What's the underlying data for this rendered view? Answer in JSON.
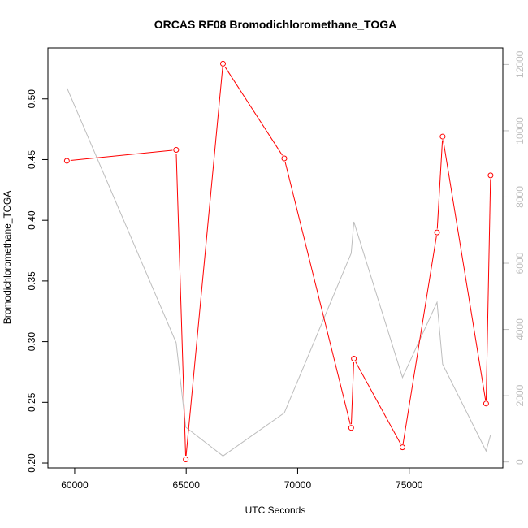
{
  "chart_data": {
    "type": "line",
    "title": "ORCAS RF08 Bromodichloromethane_TOGA",
    "xlabel": "UTC Seconds",
    "ylabel": "Bromodichloromethane_TOGA",
    "xlim": [
      58800,
      79200
    ],
    "ylim": [
      0.196,
      0.542
    ],
    "y2lim": [
      -180,
      12500
    ],
    "x_ticks": [
      60000,
      65000,
      70000,
      75000
    ],
    "y_ticks": [
      0.2,
      0.25,
      0.3,
      0.35,
      0.4,
      0.45,
      0.5
    ],
    "y2_ticks": [
      0,
      2000,
      4000,
      6000,
      8000,
      10000,
      12000
    ],
    "series": [
      {
        "axis": "left",
        "color": "#ff0000",
        "markers": "open-circle",
        "points": [
          {
            "x": 59650,
            "y": 0.449
          },
          {
            "x": 64550,
            "y": 0.458
          },
          {
            "x": 64980,
            "y": 0.203
          },
          {
            "x": 66650,
            "y": 0.529
          },
          {
            "x": 69400,
            "y": 0.451
          },
          {
            "x": 72400,
            "y": 0.229
          },
          {
            "x": 72520,
            "y": 0.286
          },
          {
            "x": 74700,
            "y": 0.213
          },
          {
            "x": 76250,
            "y": 0.39
          },
          {
            "x": 76500,
            "y": 0.469
          },
          {
            "x": 78450,
            "y": 0.249
          },
          {
            "x": 78650,
            "y": 0.437
          }
        ]
      },
      {
        "axis": "right",
        "color": "#bdbdbd",
        "markers": "none",
        "points": [
          {
            "x": 59650,
            "y": 11300
          },
          {
            "x": 64550,
            "y": 3600
          },
          {
            "x": 64980,
            "y": 1050
          },
          {
            "x": 66650,
            "y": 180
          },
          {
            "x": 69400,
            "y": 1480
          },
          {
            "x": 72400,
            "y": 6300
          },
          {
            "x": 72520,
            "y": 7250
          },
          {
            "x": 74700,
            "y": 2550
          },
          {
            "x": 76250,
            "y": 4820
          },
          {
            "x": 76500,
            "y": 2950
          },
          {
            "x": 78450,
            "y": 330
          },
          {
            "x": 78650,
            "y": 820
          }
        ]
      }
    ]
  }
}
